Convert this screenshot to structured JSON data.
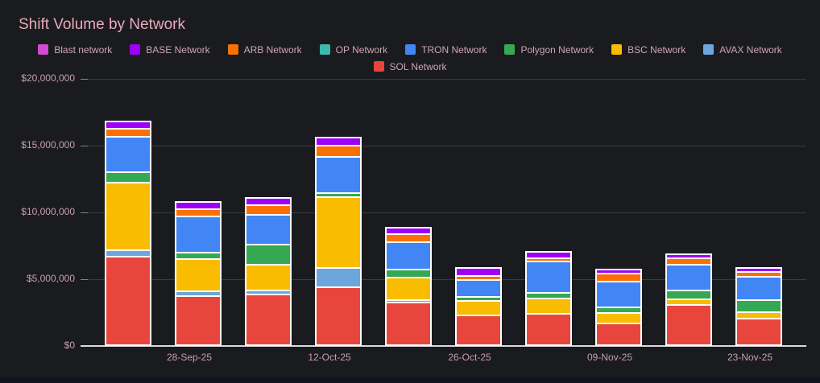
{
  "ui": {
    "background": "#1a1b1f",
    "bottom_strip_color": "#10141d",
    "title_color": "#e9a9b8",
    "axis_text_color": "#c7a0aa",
    "legend_text_color": "#cfa6b0",
    "grid_color": "#3a3b40",
    "baseline_color": "#d9d9db",
    "bar_stroke_color": "#ffffff"
  },
  "chart_data": {
    "type": "bar",
    "stacked": true,
    "title": "Shift Volume by Network",
    "xlabel": "",
    "ylabel": "",
    "ylim": [
      0,
      20000000
    ],
    "grid": true,
    "legend_position": "top-center",
    "y_tick_labels": [
      "$20,000,000",
      "$15,000,000",
      "$10,000,000",
      "$5,000,000",
      "$0"
    ],
    "x_tick_labels": [
      "",
      "28-Sep-25",
      "",
      "12-Oct-25",
      "",
      "26-Oct-25",
      "",
      "09-Nov-25",
      "",
      "23-Nov-25"
    ],
    "legend_rows": [
      [
        "Blast network",
        "BASE Network",
        "ARB Network",
        "OP Network",
        "TRON Network",
        "Polygon Network",
        "BSC Network",
        "AVAX Network"
      ],
      [
        "SOL Network"
      ]
    ],
    "stack_order_bottom_to_top": [
      "SOL Network",
      "AVAX Network",
      "BSC Network",
      "Polygon Network",
      "TRON Network",
      "OP Network",
      "ARB Network",
      "BASE Network",
      "Blast network"
    ],
    "series": [
      {
        "name": "SOL Network",
        "color": "#e8463c",
        "values": [
          6600000,
          3650000,
          3800000,
          4350000,
          3200000,
          2250000,
          2350000,
          1650000,
          3000000,
          2000000
        ]
      },
      {
        "name": "AVAX Network",
        "color": "#6ca6dc",
        "values": [
          500000,
          360000,
          300000,
          1450000,
          120000,
          0,
          0,
          0,
          0,
          0
        ]
      },
      {
        "name": "BSC Network",
        "color": "#f9bc00",
        "values": [
          5050000,
          2400000,
          1950000,
          5300000,
          1700000,
          1100000,
          1150000,
          780000,
          420000,
          480000
        ]
      },
      {
        "name": "Polygon Network",
        "color": "#34a853",
        "values": [
          780000,
          480000,
          1500000,
          300000,
          600000,
          300000,
          420000,
          420000,
          660000,
          900000
        ]
      },
      {
        "name": "TRON Network",
        "color": "#4285f4",
        "values": [
          2650000,
          2700000,
          2250000,
          2700000,
          2050000,
          1270000,
          2350000,
          1930000,
          1900000,
          1760000
        ]
      },
      {
        "name": "OP Network",
        "color": "#3cb8ae",
        "values": [
          0,
          0,
          0,
          0,
          0,
          0,
          0,
          0,
          0,
          0
        ]
      },
      {
        "name": "ARB Network",
        "color": "#fb7005",
        "values": [
          600000,
          550000,
          700000,
          850000,
          600000,
          300000,
          250000,
          600000,
          480000,
          350000
        ]
      },
      {
        "name": "BASE Network",
        "color": "#9d00f7",
        "values": [
          420000,
          400000,
          420000,
          480000,
          360000,
          480000,
          360000,
          180000,
          180000,
          200000
        ]
      },
      {
        "name": "Blast network",
        "color": "#d34ad3",
        "values": [
          0,
          0,
          0,
          0,
          0,
          0,
          0,
          0,
          0,
          0
        ]
      }
    ]
  }
}
